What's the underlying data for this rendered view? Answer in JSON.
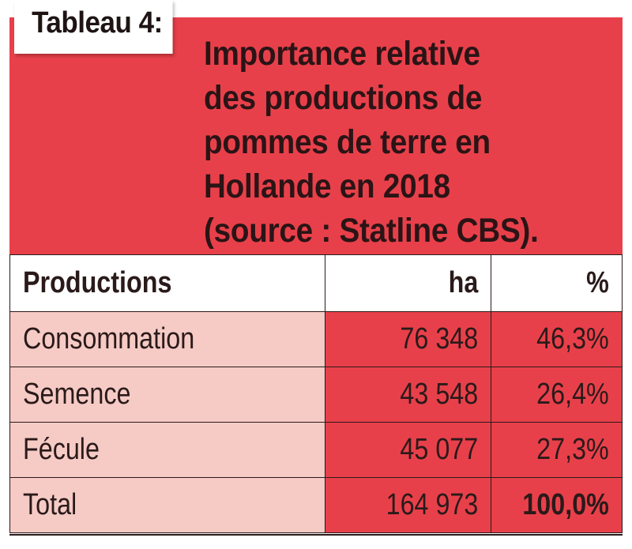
{
  "label": "Tableau 4:",
  "title": "Importance relative\ndes productions de\npommes de terre en\nHollande en 2018\n(source : Statline CBS).",
  "table": {
    "headers": [
      "Productions",
      "ha",
      "%"
    ],
    "rows": [
      {
        "name": "Consommation",
        "ha": "76 348",
        "pct": "46,3%"
      },
      {
        "name": "Semence",
        "ha": "43 548",
        "pct": "26,4%"
      },
      {
        "name": "Fécule",
        "ha": "45 077",
        "pct": "27,3%"
      },
      {
        "name": "Total",
        "ha": "164 973",
        "pct": "100,0%"
      }
    ]
  },
  "colors": {
    "red": "#e8404a",
    "pink": "#f6cbc5",
    "text": "#2a1a1a"
  }
}
